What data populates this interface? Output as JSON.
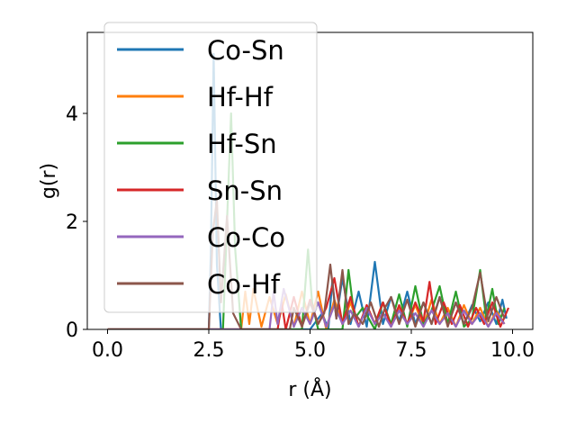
{
  "chart_data": {
    "type": "line",
    "title": "",
    "xlabel": "r (Å)",
    "ylabel": "g(r)",
    "xlim": [
      -0.5,
      10.5
    ],
    "ylim": [
      0,
      5.5
    ],
    "xticks": [
      {
        "value": 0.0,
        "label": "0.0"
      },
      {
        "value": 2.5,
        "label": "2.5"
      },
      {
        "value": 5.0,
        "label": "5.0"
      },
      {
        "value": 7.5,
        "label": "7.5"
      },
      {
        "value": 10.0,
        "label": "10.0"
      }
    ],
    "yticks": [
      {
        "value": 0,
        "label": "0"
      },
      {
        "value": 2,
        "label": "2"
      },
      {
        "value": 4,
        "label": "4"
      }
    ],
    "grid": false,
    "legend": {
      "position": "upper-left",
      "entries": [
        "Co-Sn",
        "Hf-Hf",
        "Hf-Sn",
        "Sn-Sn",
        "Co-Co",
        "Co-Hf"
      ]
    },
    "series": [
      {
        "name": "Co-Sn",
        "color": "#1f77b4",
        "x": [
          0,
          2.5,
          2.55,
          2.62,
          2.7,
          2.8,
          5.0,
          5.3,
          5.45,
          5.55,
          5.65,
          5.8,
          6.0,
          6.2,
          6.4,
          6.6,
          6.8,
          7.0,
          7.2,
          7.4,
          7.6,
          7.8,
          8.0,
          8.2,
          8.4,
          8.6,
          8.8,
          9.0,
          9.2,
          9.4,
          9.6,
          9.75,
          9.85
        ],
        "y": [
          0,
          0,
          1.4,
          5.1,
          1.2,
          0,
          0,
          0.3,
          0.0,
          0.9,
          0.2,
          0.95,
          0.1,
          0.7,
          0.05,
          1.25,
          0.1,
          0.6,
          0.15,
          0.7,
          0.1,
          0.5,
          0.1,
          0.6,
          0.1,
          0.5,
          0.1,
          0.45,
          0.15,
          0.5,
          0.1,
          0.55,
          0.2
        ]
      },
      {
        "name": "Hf-Hf",
        "color": "#ff7f0e",
        "x": [
          0,
          3.3,
          3.4,
          3.5,
          3.6,
          3.8,
          4.0,
          4.2,
          4.4,
          4.6,
          4.8,
          5.0,
          5.2,
          5.4,
          5.6,
          5.8,
          6.0,
          6.2,
          6.4,
          6.6,
          6.8,
          7.0,
          7.2,
          7.4,
          7.6,
          7.8,
          8.0,
          8.2,
          8.4,
          8.6,
          8.8,
          9.0,
          9.2,
          9.4,
          9.6,
          9.8
        ],
        "y": [
          0,
          0,
          0.7,
          0.1,
          0.75,
          0.05,
          0.6,
          0.1,
          0.65,
          0.05,
          0.7,
          0.1,
          0.7,
          0.0,
          0.55,
          0.1,
          0.5,
          0.05,
          0.45,
          0.1,
          0.5,
          0.05,
          0.4,
          0.1,
          0.45,
          0.05,
          0.55,
          0.1,
          0.4,
          0.05,
          0.45,
          0.1,
          0.4,
          0.05,
          0.35,
          0.1
        ]
      },
      {
        "name": "Hf-Sn",
        "color": "#2ca02c",
        "x": [
          0,
          2.85,
          2.95,
          3.05,
          3.15,
          3.3,
          4.8,
          4.95,
          5.05,
          5.2,
          5.8,
          5.95,
          6.1,
          6.3,
          6.6,
          6.8,
          7.0,
          7.2,
          7.4,
          7.6,
          7.8,
          8.0,
          8.2,
          8.4,
          8.6,
          8.8,
          9.0,
          9.2,
          9.35,
          9.5,
          9.65,
          9.8
        ],
        "y": [
          0,
          0,
          2.0,
          4.0,
          1.5,
          0,
          0,
          1.48,
          0.5,
          0,
          0,
          1.1,
          0.2,
          0.4,
          0.0,
          0.5,
          0.1,
          0.65,
          0.05,
          0.8,
          0.1,
          0.35,
          0.8,
          0.1,
          0.7,
          0.05,
          0.2,
          1.1,
          0.2,
          0.75,
          0.1,
          0.4
        ]
      },
      {
        "name": "Sn-Sn",
        "color": "#d62728",
        "x": [
          0,
          4.2,
          4.3,
          4.4,
          4.6,
          4.8,
          5.0,
          5.2,
          5.4,
          5.6,
          5.8,
          6.0,
          6.2,
          6.4,
          6.6,
          6.8,
          7.0,
          7.2,
          7.4,
          7.6,
          7.8,
          7.95,
          8.1,
          8.3,
          8.5,
          8.7,
          8.9,
          9.1,
          9.3,
          9.5,
          9.7,
          9.9
        ],
        "y": [
          0,
          0,
          0.5,
          0.0,
          0.6,
          0.05,
          0.55,
          0.1,
          0.4,
          0.95,
          0.1,
          0.6,
          0.05,
          0.45,
          0.1,
          0.5,
          0.05,
          0.45,
          0.1,
          0.5,
          0.15,
          0.88,
          0.1,
          0.5,
          0.1,
          0.45,
          0.05,
          0.4,
          0.1,
          0.5,
          0.05,
          0.4
        ]
      },
      {
        "name": "Co-Co",
        "color": "#9467bd",
        "x": [
          0,
          4.0,
          4.1,
          4.2,
          4.35,
          4.6,
          4.8,
          5.0,
          5.2,
          5.4,
          5.6,
          5.8,
          6.0,
          6.2,
          6.4,
          6.6,
          6.8,
          7.0,
          7.2,
          7.4,
          7.6,
          7.8,
          8.0,
          8.2,
          8.4,
          8.6,
          8.8,
          9.0,
          9.2,
          9.4,
          9.6,
          9.8
        ],
        "y": [
          0,
          0,
          0.7,
          0.1,
          0.75,
          0.05,
          0.4,
          0.1,
          0.5,
          0.05,
          0.45,
          0.1,
          0.35,
          0.05,
          0.4,
          0.1,
          0.3,
          0.05,
          0.35,
          0.1,
          0.3,
          0.05,
          0.35,
          0.1,
          0.3,
          0.05,
          0.35,
          0.1,
          0.3,
          0.05,
          0.3,
          0.1
        ]
      },
      {
        "name": "Co-Hf",
        "color": "#8c564b",
        "x": [
          0,
          2.5,
          2.6,
          2.7,
          2.8,
          2.95,
          3.1,
          3.3,
          4.5,
          4.6,
          4.8,
          5.0,
          5.2,
          5.35,
          5.5,
          5.65,
          5.8,
          5.95,
          6.1,
          6.3,
          6.5,
          6.7,
          6.85,
          7.0,
          7.2,
          7.4,
          7.6,
          7.8,
          8.0,
          8.2,
          8.4,
          8.6,
          8.8,
          9.0,
          9.2,
          9.4,
          9.6,
          9.8
        ],
        "y": [
          0,
          0,
          1.8,
          2.4,
          0.5,
          2.1,
          0.3,
          0,
          0,
          0.4,
          0.05,
          0.5,
          0.1,
          0.3,
          1.2,
          0.2,
          1.1,
          0.1,
          0.3,
          0.1,
          0.5,
          0.05,
          0.4,
          0.6,
          0.1,
          0.55,
          0.05,
          0.5,
          0.1,
          0.6,
          0.05,
          0.5,
          0.1,
          0.4,
          1.05,
          0.15,
          0.6,
          0.2
        ]
      }
    ]
  }
}
